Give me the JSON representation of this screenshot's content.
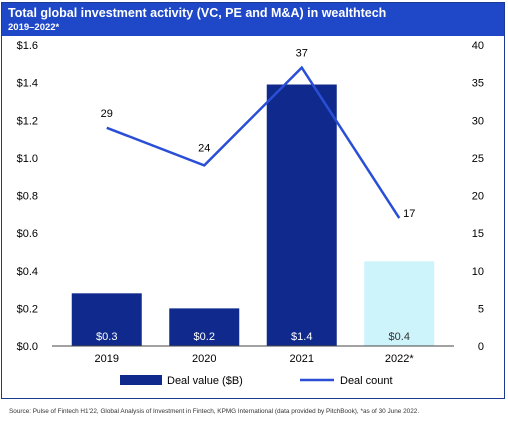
{
  "header": {
    "title": "Total global investment activity (VC, PE and M&A) in wealthtech",
    "subtitle": "2019–2022*"
  },
  "chart_data": {
    "type": "bar",
    "categories": [
      "2019",
      "2020",
      "2021",
      "2022*"
    ],
    "series": [
      {
        "name": "Deal value ($B)",
        "kind": "bar",
        "axis": "left",
        "values": [
          0.3,
          0.2,
          1.4,
          0.4
        ],
        "plotted_values": [
          0.28,
          0.2,
          1.39,
          0.45
        ],
        "labels": [
          "$0.3",
          "$0.2",
          "$1.4",
          "$0.4"
        ],
        "colors": [
          "#0f2a8c",
          "#0f2a8c",
          "#0f2a8c",
          "#cdf3fb"
        ]
      },
      {
        "name": "Deal count",
        "kind": "line",
        "axis": "right",
        "values": [
          29,
          24,
          37,
          17
        ],
        "labels": [
          "29",
          "24",
          "37",
          "17"
        ],
        "color": "#2a4fd6"
      }
    ],
    "y_left": {
      "min": 0,
      "max": 1.6,
      "ticks": [
        "$0.0",
        "$0.2",
        "$0.4",
        "$0.6",
        "$0.8",
        "$1.0",
        "$1.2",
        "$1.4",
        "$1.6"
      ]
    },
    "y_right": {
      "min": 0,
      "max": 40,
      "ticks": [
        "0",
        "5",
        "10",
        "15",
        "20",
        "25",
        "30",
        "35",
        "40"
      ]
    },
    "grid": false,
    "legend_position": "bottom"
  },
  "source": "Source: Pulse of Fintech H1'22, Global Analysis of Investment in Fintech, KPMG International (data provided by PitchBook), *as of 30 June 2022."
}
